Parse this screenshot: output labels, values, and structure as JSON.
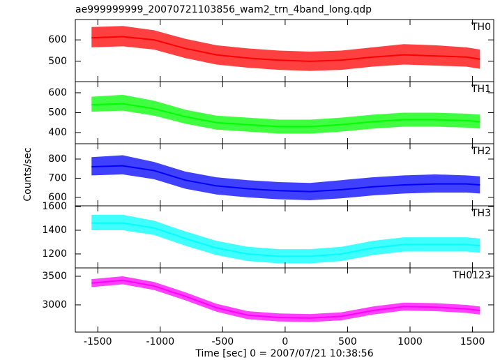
{
  "chart_data": [
    {
      "type": "line",
      "title": "ae999999999_20070721103856_wam2_trn_4band_long.qdp",
      "label": "TH0",
      "x": [
        -1550,
        -1300,
        -1050,
        -800,
        -550,
        -300,
        -50,
        200,
        450,
        700,
        950,
        1200,
        1450,
        1560
      ],
      "series": [
        {
          "name": "TH0",
          "color": "#ff0000",
          "values": [
            610,
            615,
            600,
            560,
            530,
            515,
            505,
            500,
            505,
            520,
            530,
            525,
            520,
            510
          ],
          "low": [
            565,
            570,
            555,
            515,
            485,
            470,
            460,
            455,
            460,
            475,
            485,
            480,
            475,
            465
          ],
          "high": [
            660,
            665,
            645,
            605,
            575,
            560,
            550,
            545,
            550,
            565,
            580,
            575,
            565,
            555
          ]
        }
      ],
      "xlim": [
        -1680,
        1670
      ],
      "ylim": [
        405,
        695
      ],
      "yticks": [
        500,
        600
      ]
    },
    {
      "type": "line",
      "label": "TH1",
      "ylabel": "Counts/sec",
      "x": [
        -1550,
        -1300,
        -1050,
        -800,
        -550,
        -300,
        -50,
        200,
        450,
        700,
        950,
        1200,
        1450,
        1560
      ],
      "series": [
        {
          "name": "TH1",
          "color": "#00ff00",
          "values": [
            540,
            545,
            520,
            480,
            450,
            440,
            430,
            430,
            440,
            455,
            465,
            465,
            460,
            455
          ],
          "low": [
            505,
            510,
            485,
            445,
            415,
            405,
            395,
            395,
            405,
            420,
            430,
            430,
            425,
            420
          ],
          "high": [
            580,
            590,
            560,
            515,
            485,
            475,
            465,
            465,
            475,
            490,
            500,
            500,
            495,
            490
          ]
        }
      ],
      "xlim": [
        -1680,
        1670
      ],
      "ylim": [
        344,
        656
      ],
      "yticks": [
        400,
        500,
        600
      ]
    },
    {
      "type": "line",
      "label": "TH2",
      "x": [
        -1550,
        -1300,
        -1050,
        -800,
        -550,
        -300,
        -50,
        200,
        450,
        700,
        950,
        1200,
        1450,
        1560
      ],
      "series": [
        {
          "name": "TH2",
          "color": "#0000ff",
          "values": [
            760,
            765,
            740,
            690,
            660,
            645,
            635,
            630,
            640,
            655,
            665,
            670,
            670,
            665
          ],
          "low": [
            715,
            720,
            695,
            645,
            615,
            600,
            590,
            585,
            595,
            610,
            620,
            625,
            625,
            620
          ],
          "high": [
            810,
            820,
            785,
            735,
            705,
            690,
            680,
            675,
            690,
            705,
            715,
            720,
            715,
            710
          ]
        }
      ],
      "xlim": [
        -1680,
        1670
      ],
      "ylim": [
        556,
        880
      ],
      "yticks": [
        600,
        700,
        800
      ]
    },
    {
      "type": "line",
      "label": "TH3",
      "x": [
        -1550,
        -1300,
        -1050,
        -800,
        -550,
        -300,
        -50,
        200,
        450,
        700,
        950,
        1200,
        1450,
        1560
      ],
      "series": [
        {
          "name": "TH3",
          "color": "#00ffff",
          "values": [
            1460,
            1460,
            1420,
            1330,
            1250,
            1200,
            1180,
            1180,
            1200,
            1250,
            1280,
            1280,
            1280,
            1270
          ],
          "low": [
            1400,
            1400,
            1360,
            1270,
            1190,
            1140,
            1120,
            1120,
            1140,
            1190,
            1220,
            1220,
            1220,
            1210
          ],
          "high": [
            1530,
            1530,
            1480,
            1390,
            1310,
            1260,
            1240,
            1240,
            1260,
            1310,
            1340,
            1340,
            1340,
            1330
          ]
        }
      ],
      "xlim": [
        -1680,
        1670
      ],
      "ylim": [
        1082,
        1606
      ],
      "yticks": [
        1200,
        1400,
        1600
      ]
    },
    {
      "type": "line",
      "label": "TH0123",
      "xlabel": "Time [sec] 0 = 2007/07/21 10:38:56",
      "x": [
        -1550,
        -1300,
        -1050,
        -800,
        -550,
        -300,
        -50,
        200,
        450,
        700,
        950,
        1200,
        1450,
        1560
      ],
      "series": [
        {
          "name": "TH0123",
          "color": "#ff00ff",
          "values": [
            3380,
            3430,
            3330,
            3150,
            2950,
            2820,
            2780,
            2770,
            2800,
            2900,
            2970,
            2960,
            2930,
            2900
          ],
          "low": [
            3310,
            3360,
            3260,
            3080,
            2880,
            2750,
            2710,
            2700,
            2730,
            2830,
            2900,
            2890,
            2860,
            2830
          ],
          "high": [
            3450,
            3500,
            3400,
            3220,
            3020,
            2890,
            2850,
            2840,
            2870,
            2970,
            3040,
            3030,
            3000,
            2970
          ]
        }
      ],
      "xlim": [
        -1680,
        1670
      ],
      "ylim": [
        2524,
        3646
      ],
      "yticks": [
        3000,
        3500
      ],
      "xticks": [
        -1500,
        -1000,
        -500,
        0,
        500,
        1000,
        1500
      ]
    }
  ]
}
